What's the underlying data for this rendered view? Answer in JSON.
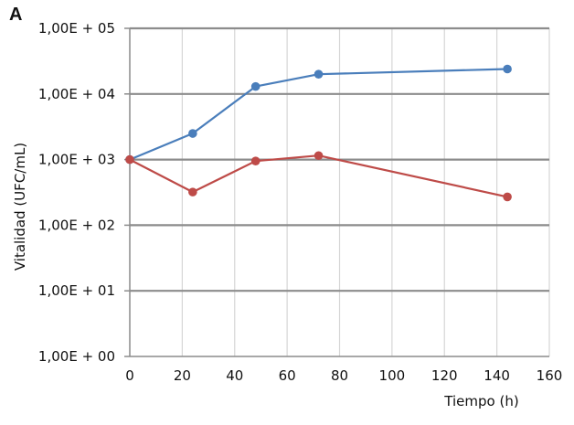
{
  "chart_data": {
    "type": "line",
    "panel_label": "A",
    "title": "",
    "xlabel": "Tiempo (h)",
    "ylabel": "Vitalidad (UFC/mL)",
    "xlim": [
      0,
      160
    ],
    "x_ticks": [
      0,
      20,
      40,
      60,
      80,
      100,
      120,
      140,
      160
    ],
    "y_scale": "log",
    "ylim": [
      1,
      100000
    ],
    "y_ticks": [
      1,
      10,
      100,
      1000,
      10000,
      100000
    ],
    "y_tick_labels": [
      "1,00E + 00",
      "1,00E + 01",
      "1,00E + 02",
      "1,00E + 03",
      "1,00E + 04",
      "1,00E + 05"
    ],
    "grid": true,
    "legend": "none",
    "series": [
      {
        "color": "#4a7ebb",
        "x": [
          0,
          24,
          48,
          72,
          144
        ],
        "y": [
          1000,
          2500,
          13000,
          20000,
          24000
        ]
      },
      {
        "color": "#be4b48",
        "x": [
          0,
          24,
          48,
          72,
          144
        ],
        "y": [
          1000,
          320,
          950,
          1150,
          270
        ]
      }
    ]
  }
}
